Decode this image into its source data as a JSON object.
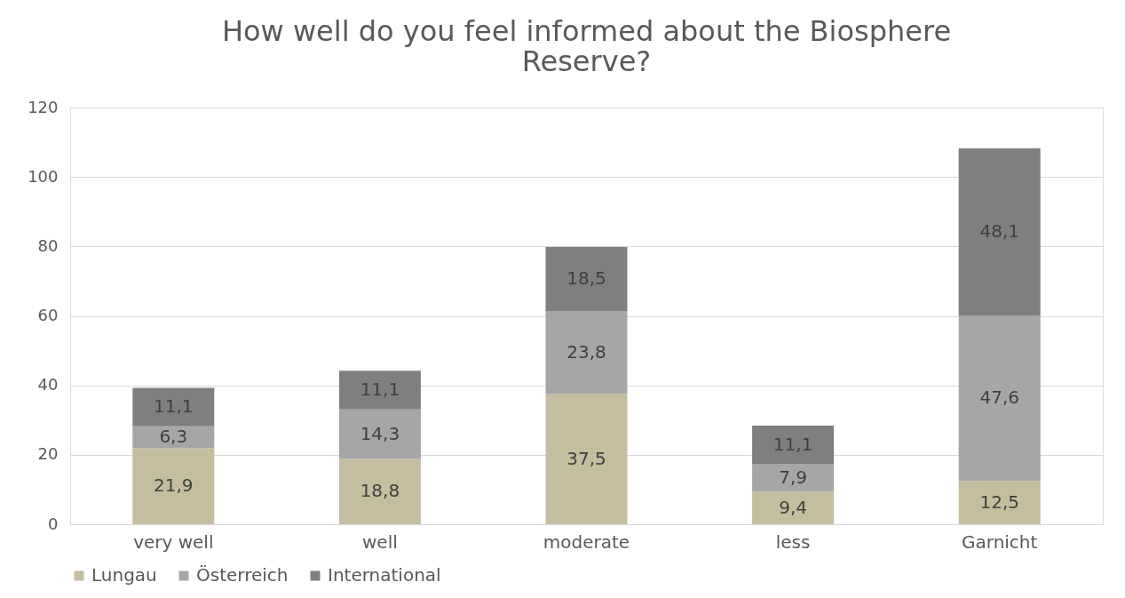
{
  "chart_data": {
    "type": "bar",
    "title": "How well do you feel informed about the Biosphere Reserve?",
    "categories": [
      "very well",
      "well",
      "moderate",
      "less",
      "Garnicht"
    ],
    "stacked": true,
    "series": [
      {
        "name": "Lungau",
        "color": "#c4bd9f",
        "values": [
          21.9,
          18.8,
          37.5,
          9.4,
          12.5
        ],
        "value_labels": [
          "21,9",
          "18,8",
          "37,5",
          "9,4",
          "12,5"
        ]
      },
      {
        "name": "Österreich",
        "color": "#a6a6a6",
        "values": [
          6.3,
          14.3,
          23.8,
          7.9,
          47.6
        ],
        "value_labels": [
          "6,3",
          "14,3",
          "23,8",
          "7,9",
          "47,6"
        ]
      },
      {
        "name": "International",
        "color": "#7f7f7f",
        "values": [
          11.1,
          11.1,
          18.5,
          11.1,
          48.1
        ],
        "value_labels": [
          "11,1",
          "11,1",
          "18,5",
          "11,1",
          "48,1"
        ]
      }
    ],
    "ylim": [
      0,
      120
    ],
    "yticks": [
      0,
      20,
      40,
      60,
      80,
      100,
      120
    ],
    "grid": "y",
    "legend": "bottom"
  }
}
